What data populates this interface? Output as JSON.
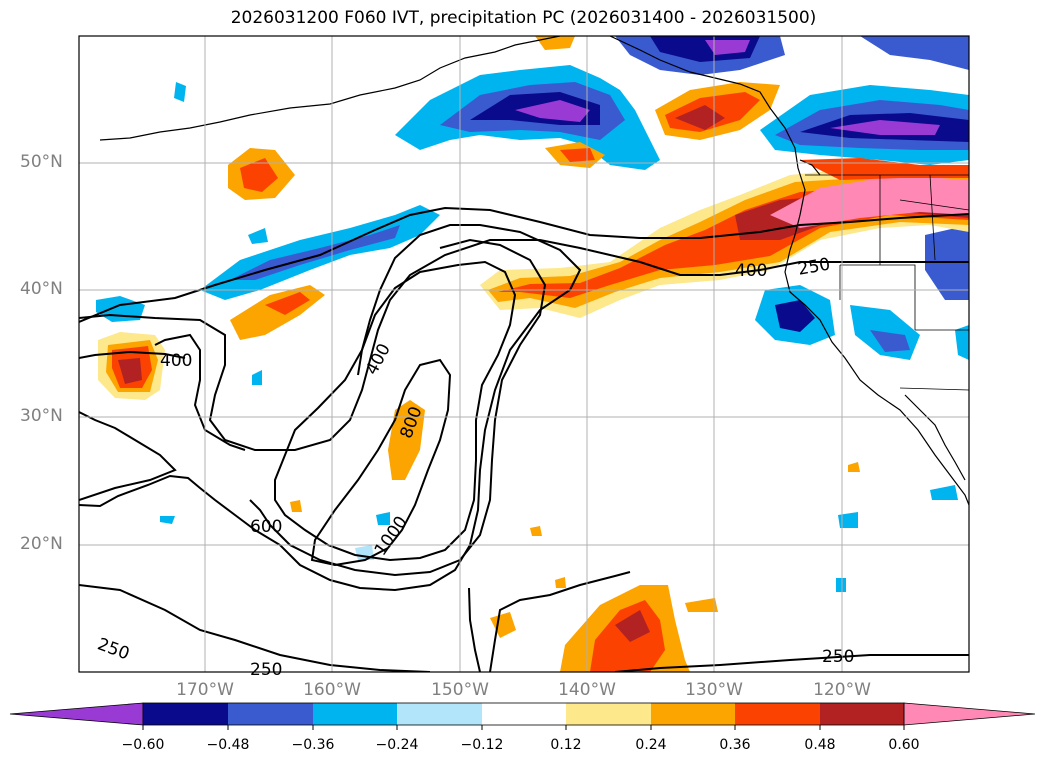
{
  "title": "2026031200 F060 IVT, precipitation PC (2026031400 - 2026031500)",
  "map": {
    "lon_range": [
      -180,
      -110
    ],
    "lat_range": [
      10,
      60
    ],
    "lat_labels": [
      "50°N",
      "40°N",
      "30°N",
      "20°N"
    ],
    "lon_labels": [
      "170°W",
      "160°W",
      "150°W",
      "140°W",
      "130°W",
      "120°W"
    ],
    "contour_labels": [
      "400",
      "400",
      "800",
      "600",
      "1000",
      "250",
      "250",
      "400",
      "250",
      "250"
    ],
    "grid": true,
    "coastlines": true
  },
  "colorbar": {
    "ticks": [
      "−0.60",
      "−0.48",
      "−0.36",
      "−0.24",
      "−0.12",
      "0.12",
      "0.24",
      "0.36",
      "0.48",
      "0.60"
    ],
    "colors": [
      "#9a3ad4",
      "#0a0a8c",
      "#3a5ad0",
      "#00b4f0",
      "#b2e4fa",
      "#ffffff",
      "#fde88c",
      "#fca400",
      "#fc4200",
      "#b22222",
      "#ff88b4"
    ],
    "extend": "both"
  }
}
